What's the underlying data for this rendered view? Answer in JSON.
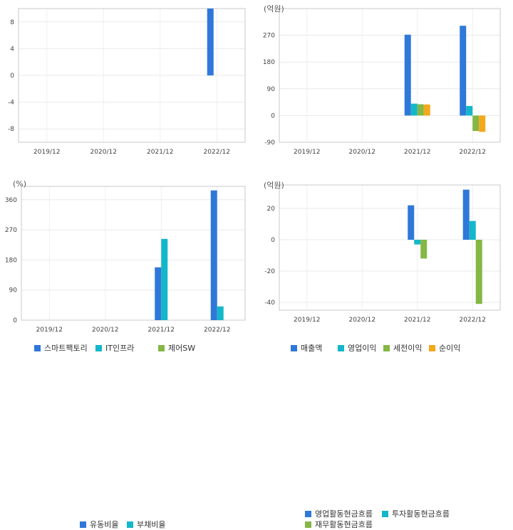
{
  "colors": {
    "blue": "#2f78d9",
    "cyan": "#13b7c9",
    "green": "#84b744",
    "orange": "#f4a81b"
  },
  "chart_data": [
    {
      "type": "bar",
      "unit": "",
      "categories": [
        "2019/12",
        "2020/12",
        "2021/12",
        "2022/12"
      ],
      "yticks": [
        8,
        4,
        0,
        -4,
        -8
      ],
      "ylim": [
        -10,
        10
      ],
      "series": [
        {
          "name": "스마트팩토리",
          "color": "#2f78d9",
          "values": [
            null,
            null,
            null,
            10
          ]
        },
        {
          "name": "IT인프라",
          "color": "#13b7c9",
          "values": [
            null,
            null,
            null,
            null
          ]
        },
        {
          "name": "제어SW",
          "color": "#84b744",
          "values": [
            null,
            null,
            null,
            null
          ]
        }
      ]
    },
    {
      "type": "bar",
      "unit": "(억원)",
      "categories": [
        "2019/12",
        "2020/12",
        "2021/12",
        "2022/12"
      ],
      "yticks": [
        270,
        180,
        90,
        0,
        -90
      ],
      "ylim": [
        -90,
        360
      ],
      "series": [
        {
          "name": "매출액",
          "color": "#2f78d9",
          "values": [
            null,
            null,
            272,
            302
          ]
        },
        {
          "name": "영업이익",
          "color": "#13b7c9",
          "values": [
            null,
            null,
            40,
            32
          ]
        },
        {
          "name": "세전이익",
          "color": "#84b744",
          "values": [
            null,
            null,
            38,
            -52
          ]
        },
        {
          "name": "순이익",
          "color": "#f4a81b",
          "values": [
            null,
            null,
            37,
            -55
          ]
        }
      ]
    },
    {
      "type": "bar",
      "unit": "(%)",
      "categories": [
        "2019/12",
        "2020/12",
        "2021/12",
        "2022/12"
      ],
      "yticks": [
        360,
        270,
        180,
        90,
        0
      ],
      "ylim": [
        0,
        400
      ],
      "series": [
        {
          "name": "유동비율",
          "color": "#2f78d9",
          "values": [
            null,
            null,
            158,
            388
          ]
        },
        {
          "name": "부채비율",
          "color": "#13b7c9",
          "values": [
            null,
            null,
            243,
            41
          ]
        }
      ]
    },
    {
      "type": "bar",
      "unit": "(억원)",
      "categories": [
        "2019/12",
        "2020/12",
        "2021/12",
        "2022/12"
      ],
      "yticks": [
        20,
        0,
        -20,
        -40
      ],
      "ylim": [
        -45,
        35
      ],
      "series": [
        {
          "name": "영업활동현금흐름",
          "color": "#2f78d9",
          "values": [
            null,
            null,
            22,
            32
          ]
        },
        {
          "name": "투자활동현금흐름",
          "color": "#13b7c9",
          "values": [
            null,
            null,
            -3,
            12
          ]
        },
        {
          "name": "재무활동현금흐름",
          "color": "#84b744",
          "values": [
            null,
            null,
            -12,
            -41
          ]
        }
      ]
    }
  ]
}
